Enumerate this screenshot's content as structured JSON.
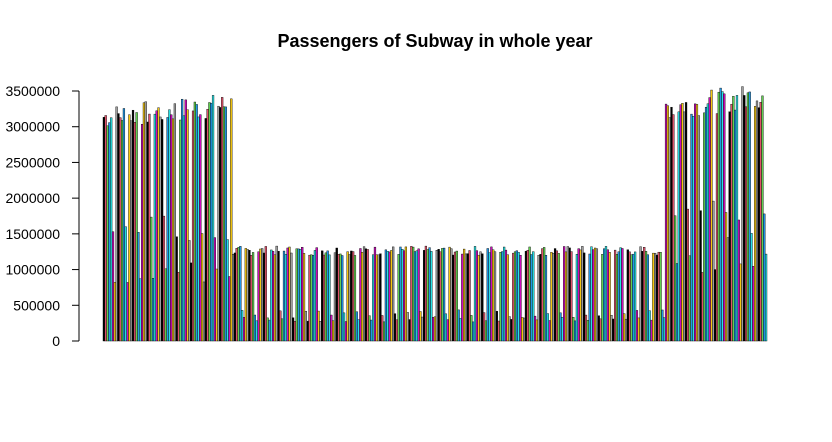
{
  "chart_data": {
    "type": "bar",
    "title": "Passengers of Subway in whole year",
    "xlabel": "",
    "ylabel": "",
    "ylim": [
      0,
      3500000
    ],
    "yticks": [
      {
        "value": 0,
        "label": "0"
      },
      {
        "value": 500000,
        "label": "500000"
      },
      {
        "value": 1000000,
        "label": "1000000"
      },
      {
        "value": 1500000,
        "label": "1500000"
      },
      {
        "value": 2000000,
        "label": "2000000"
      },
      {
        "value": 2500000,
        "label": "2500000"
      },
      {
        "value": 3000000,
        "label": "3000000"
      },
      {
        "value": 3500000,
        "label": "3500000"
      }
    ],
    "grid": false,
    "legend": "none",
    "bar_colors": [
      "#000000",
      "#DF536B",
      "#61D04F",
      "#2297E6",
      "#28E2E5",
      "#CD0BBC",
      "#F5C710",
      "#9E9E9E"
    ],
    "segments": [
      {
        "start": 3300000,
        "end": 3480000,
        "low": 1300000,
        "pattern": "peak"
      },
      {
        "start": 1330000,
        "end": 1330000,
        "low": 380000,
        "pattern": "flat"
      },
      {
        "start": 3450000,
        "end": 3620000,
        "low": 1500000,
        "pattern": "peak"
      }
    ],
    "values": []
  }
}
